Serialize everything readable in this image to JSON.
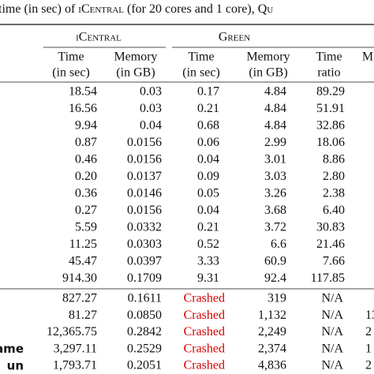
{
  "caption": [
    "time (in sec) of ",
    "iCentral",
    " (for 20 cores and 1 core), ",
    "Qu"
  ],
  "groups": [
    "iCentral",
    "Green"
  ],
  "columns": [
    [
      "Time",
      "(in sec)"
    ],
    [
      "Memory",
      "(in GB)"
    ],
    [
      "Time",
      "(in sec)"
    ],
    [
      "Memory",
      "(in GB)"
    ],
    [
      "Time",
      "ratio"
    ],
    [
      "M"
    ]
  ],
  "upper_rows": [
    [
      "18.54",
      "0.03",
      "0.17",
      "4.84",
      "89.29"
    ],
    [
      "16.56",
      "0.03",
      "0.21",
      "4.84",
      "51.91"
    ],
    [
      "9.94",
      "0.04",
      "0.68",
      "4.84",
      "32.86"
    ],
    [
      "0.87",
      "0.0156",
      "0.06",
      "2.99",
      "18.06"
    ],
    [
      "0.46",
      "0.0156",
      "0.04",
      "3.01",
      "8.86"
    ],
    [
      "0.20",
      "0.0137",
      "0.09",
      "3.03",
      "2.80"
    ],
    [
      "0.36",
      "0.0146",
      "0.05",
      "3.26",
      "2.38"
    ],
    [
      "0.27",
      "0.0156",
      "0.04",
      "3.68",
      "6.40"
    ],
    [
      "5.59",
      "0.0332",
      "0.21",
      "3.72",
      "30.83"
    ],
    [
      "11.25",
      "0.0303",
      "0.52",
      "6.6",
      "21.46"
    ],
    [
      "45.47",
      "0.0397",
      "3.33",
      "60.9",
      "7.66"
    ],
    [
      "914.30",
      "0.1709",
      "9.31",
      "92.4",
      "117.85"
    ]
  ],
  "lower_rows": [
    {
      "cells": [
        "827.27",
        "0.1611",
        "Crashed",
        "319",
        "N/A"
      ]
    },
    {
      "cells": [
        "81.27",
        "0.0850",
        "Crashed",
        "1,132",
        "N/A"
      ],
      "tail": "13"
    },
    {
      "cells": [
        "12,365.75",
        "0.2842",
        "Crashed",
        "2,249",
        "N/A"
      ],
      "tail": "2"
    },
    {
      "name": "ame",
      "cells": [
        "3,297.11",
        "0.2529",
        "Crashed",
        "2,374",
        "N/A"
      ],
      "tail": "1"
    },
    {
      "name": "un",
      "cells": [
        "1,793.71",
        "0.2051",
        "Crashed",
        "4,836",
        "N/A"
      ],
      "tail": "2"
    }
  ]
}
